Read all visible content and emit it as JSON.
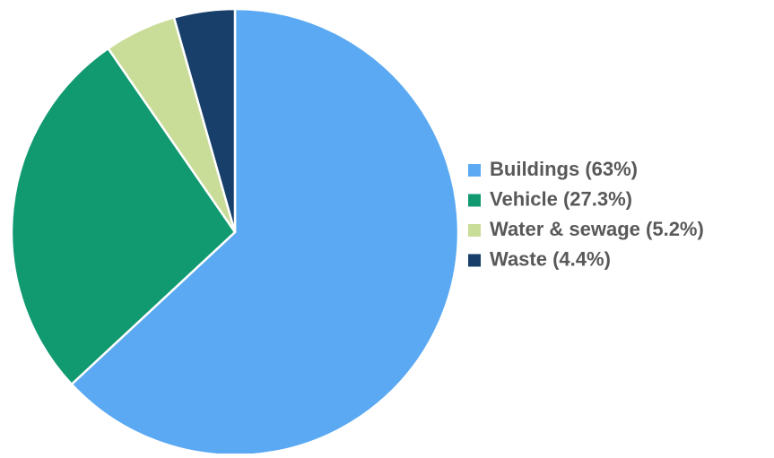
{
  "chart_data": {
    "type": "pie",
    "categories": [
      "Buildings (63%)",
      "Vehicle (27.3%)",
      "Water & sewage (5.2%)",
      "Waste (4.4%)"
    ],
    "values": [
      63,
      27.3,
      5.2,
      4.4
    ],
    "colors": [
      "#5aa9f2",
      "#119970",
      "#c9dc98",
      "#173f6a"
    ],
    "legend": "right"
  }
}
